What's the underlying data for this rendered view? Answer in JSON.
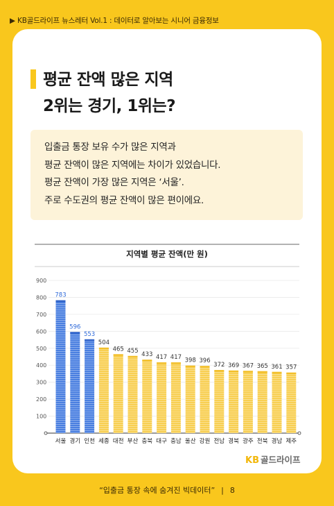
{
  "header": {
    "text": "▶ KB골드라이프 뉴스레터 Vol.1 : 데이터로 알아보는 시니어 금융정보"
  },
  "title": {
    "line1": "평균 잔액 많은 지역",
    "line2": "2위는 경기, 1위는?"
  },
  "description": [
    "입출금 통장 보유 수가 많은 지역과",
    "평균 잔액이 많은 지역에는 차이가 있었습니다.",
    "평균 잔액이 가장 많은 지역은 ‘서울’.",
    "주로 수도권의 평균 잔액이 많은 편이에요."
  ],
  "chart_data": {
    "type": "bar",
    "title": "지역별 평균 잔액(만 원)",
    "categories": [
      "서울",
      "경기",
      "인천",
      "세종",
      "대전",
      "부산",
      "충북",
      "대구",
      "충남",
      "울산",
      "강원",
      "전남",
      "경북",
      "광주",
      "전북",
      "경남",
      "제주"
    ],
    "values": [
      783,
      596,
      553,
      504,
      465,
      455,
      433,
      417,
      417,
      398,
      396,
      372,
      369,
      367,
      365,
      361,
      357
    ],
    "ylim": [
      0,
      900
    ],
    "yticks": [
      100,
      200,
      300,
      400,
      500,
      600,
      700,
      800,
      900
    ],
    "grid": true,
    "colors": {
      "highlight": "#4a7fe0",
      "highlight_label": "#2f6ad9",
      "normal": "#f8cf52",
      "normal_label": "#333333"
    },
    "highlight_count": 3
  },
  "logo": {
    "kb": "KB",
    "name": "골드라이프"
  },
  "footer": {
    "quote": "“입출금 통장 속에 숨겨진 빅데이터”",
    "separator": "|",
    "page": "8"
  }
}
